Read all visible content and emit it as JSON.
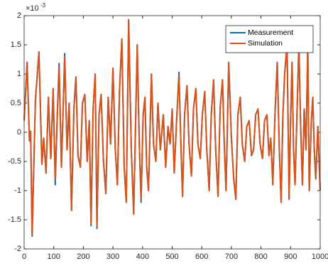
{
  "chart_data": {
    "type": "line",
    "y_multiplier": "×10",
    "y_exponent": "-3",
    "x": [
      0,
      10,
      18,
      22,
      27,
      38,
      50,
      60,
      66,
      74,
      82,
      90,
      98,
      105,
      112,
      118,
      126,
      130,
      137,
      145,
      152,
      160,
      168,
      175,
      182,
      190,
      197,
      205,
      213,
      220,
      226,
      233,
      240,
      246,
      253,
      260,
      268,
      276,
      284,
      292,
      300,
      308,
      315,
      322,
      330,
      338,
      345,
      353,
      362,
      370,
      382,
      389,
      395,
      402,
      408,
      414,
      420,
      430,
      437,
      445,
      452,
      460,
      470,
      478,
      486,
      493,
      500,
      507,
      515,
      523,
      530,
      535,
      542,
      550,
      557,
      565,
      572,
      580,
      587,
      595,
      602,
      610,
      617,
      625,
      632,
      640,
      647,
      655,
      662,
      670,
      676,
      682,
      691,
      700,
      708,
      715,
      722,
      730,
      737,
      745,
      752,
      760,
      768,
      775,
      782,
      790,
      797,
      805,
      812,
      820,
      827,
      833,
      840,
      848,
      855,
      862,
      868,
      874,
      880,
      888,
      895,
      900,
      905,
      910,
      915,
      922,
      928,
      934,
      940,
      946,
      952,
      958,
      963,
      970,
      975,
      980,
      985,
      992,
      1000
    ],
    "series": [
      {
        "name": "Measurement",
        "color": "#0072BD",
        "values": [
          0.2,
          1.2,
          -0.15,
          0.02,
          -1.78,
          0.55,
          1.38,
          -0.55,
          -0.1,
          -0.7,
          0.6,
          -0.45,
          0.75,
          -0.9,
          0.3,
          1.18,
          -0.6,
          0.1,
          1.35,
          -0.3,
          0.5,
          -1.34,
          0.4,
          0.95,
          -0.4,
          -0.6,
          0.5,
          0.65,
          -0.5,
          0.2,
          -1.6,
          0.4,
          1.0,
          -1.65,
          0.3,
          0.65,
          -0.5,
          -1.05,
          0.6,
          -0.2,
          1.1,
          -0.3,
          -0.9,
          0.7,
          1.6,
          -0.6,
          -1.2,
          1.93,
          -0.3,
          -1.4,
          1.5,
          -0.2,
          -1.2,
          0.3,
          0.6,
          -0.6,
          -1.0,
          1.0,
          -0.2,
          -0.5,
          0.5,
          -0.3,
          0.3,
          -0.6,
          0.1,
          -0.2,
          0.4,
          -0.7,
          0.2,
          1.03,
          -0.3,
          -1.1,
          0.3,
          0.8,
          -0.2,
          -0.75,
          0.4,
          0.75,
          -0.2,
          -0.45,
          0.3,
          0.7,
          -0.3,
          -1.0,
          0.3,
          0.9,
          -0.3,
          -1.1,
          0.4,
          0.9,
          -0.2,
          -1.0,
          1.2,
          -0.1,
          -0.8,
          -1.15,
          0.3,
          0.6,
          -0.2,
          -0.5,
          0.1,
          0.2,
          -0.4,
          -0.3,
          0.3,
          0.4,
          -0.2,
          -0.45,
          0.2,
          0.3,
          -0.4,
          -0.1,
          -0.9,
          0.4,
          1.2,
          -0.3,
          -1.2,
          0.3,
          1.0,
          1.54,
          -1.15,
          0.2,
          1.2,
          -0.3,
          -0.9,
          0.4,
          1.5,
          0.1,
          -0.9,
          0.4,
          -0.3,
          1.5,
          -1.0,
          0.2,
          0.6,
          -0.3,
          -0.8,
          0.1,
          -1.0
        ]
      },
      {
        "name": "Simulation",
        "color": "#D95319",
        "values": [
          0.2,
          1.2,
          -0.15,
          0.02,
          -1.76,
          0.55,
          1.38,
          -0.55,
          -0.1,
          -0.7,
          0.6,
          -0.45,
          0.75,
          -0.82,
          0.3,
          1.12,
          -0.6,
          0.1,
          1.3,
          -0.3,
          0.5,
          -1.34,
          0.4,
          0.95,
          -0.4,
          -0.6,
          0.5,
          0.65,
          -0.5,
          0.2,
          -1.57,
          0.4,
          1.0,
          -1.6,
          0.3,
          0.65,
          -0.5,
          -1.05,
          0.6,
          -0.2,
          1.1,
          -0.3,
          -0.9,
          0.7,
          1.6,
          -0.6,
          -1.2,
          1.93,
          -0.3,
          -1.4,
          1.5,
          -0.2,
          -1.16,
          0.3,
          0.6,
          -0.6,
          -1.0,
          1.0,
          -0.2,
          -0.5,
          0.5,
          -0.3,
          0.3,
          -0.6,
          0.1,
          -0.2,
          0.4,
          -0.7,
          0.2,
          0.98,
          -0.3,
          -1.1,
          0.3,
          0.8,
          -0.2,
          -0.75,
          0.4,
          0.75,
          -0.2,
          -0.45,
          0.3,
          0.7,
          -0.3,
          -1.0,
          0.3,
          0.9,
          -0.3,
          -1.1,
          0.4,
          0.9,
          -0.2,
          -1.0,
          1.2,
          -0.1,
          -0.8,
          -1.15,
          0.3,
          0.6,
          -0.2,
          -0.5,
          0.1,
          0.2,
          -0.4,
          -0.3,
          0.3,
          0.4,
          -0.2,
          -0.45,
          0.2,
          0.3,
          -0.4,
          -0.1,
          -0.9,
          0.4,
          1.2,
          -0.3,
          -1.2,
          0.3,
          1.0,
          1.5,
          -1.15,
          0.2,
          1.2,
          -0.3,
          -0.9,
          0.4,
          1.5,
          0.1,
          -0.9,
          0.4,
          -0.3,
          1.5,
          -1.0,
          0.2,
          0.6,
          -0.3,
          -0.8,
          0.1,
          -1.0
        ]
      }
    ],
    "xlim": [
      0,
      1000
    ],
    "xticks": [
      0,
      100,
      200,
      300,
      400,
      500,
      600,
      700,
      800,
      900,
      1000
    ],
    "ylim": [
      -2,
      2
    ],
    "yticks": [
      -2,
      -1.5,
      -1,
      -0.5,
      0,
      0.5,
      1,
      1.5,
      2
    ],
    "grid": false,
    "legend": "northeast"
  }
}
